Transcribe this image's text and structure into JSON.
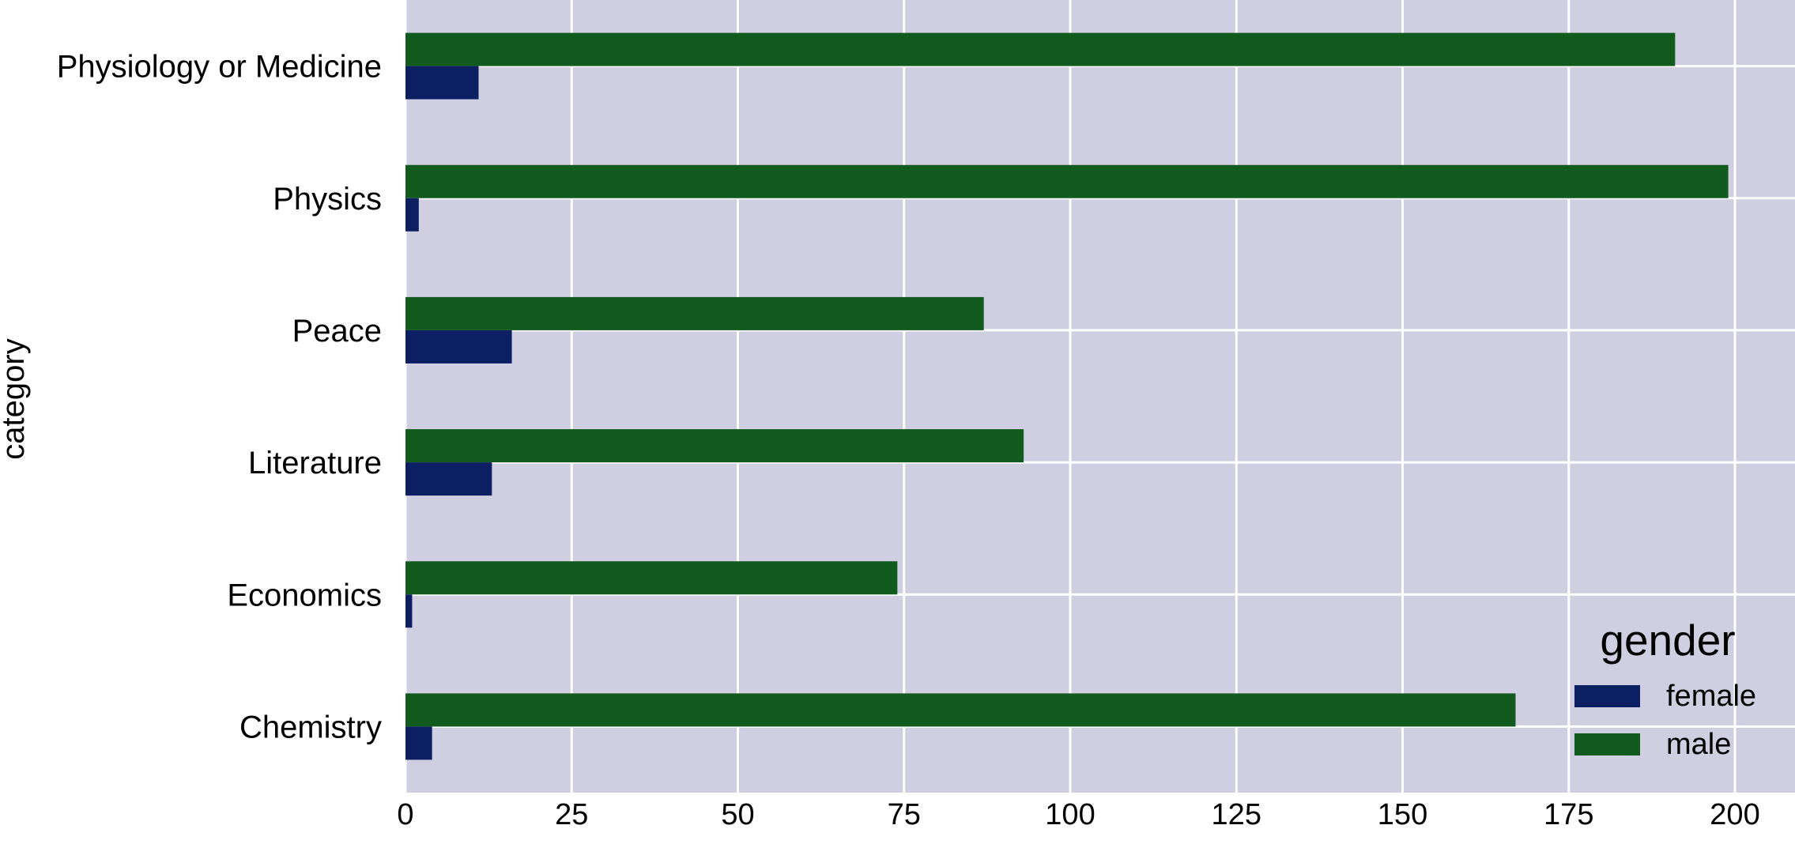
{
  "chart_data": {
    "type": "bar",
    "orientation": "horizontal",
    "categories": [
      "Chemistry",
      "Economics",
      "Literature",
      "Peace",
      "Physics",
      "Physiology or Medicine"
    ],
    "series": [
      {
        "name": "female",
        "values": [
          4,
          1,
          13,
          16,
          2,
          11
        ],
        "color": "#0d1f63"
      },
      {
        "name": "male",
        "values": [
          167,
          74,
          93,
          87,
          199,
          191
        ],
        "color": "#125b1e"
      }
    ],
    "ylabel": "category",
    "xlabel": "",
    "xlim": [
      0,
      208
    ],
    "xticks": [
      0,
      25,
      50,
      75,
      100,
      125,
      150,
      175,
      200
    ],
    "grid": true,
    "background": "#cfcfe1",
    "grid_color": "#ffffff",
    "legend": {
      "title": "gender",
      "placement": "lower-right"
    }
  }
}
